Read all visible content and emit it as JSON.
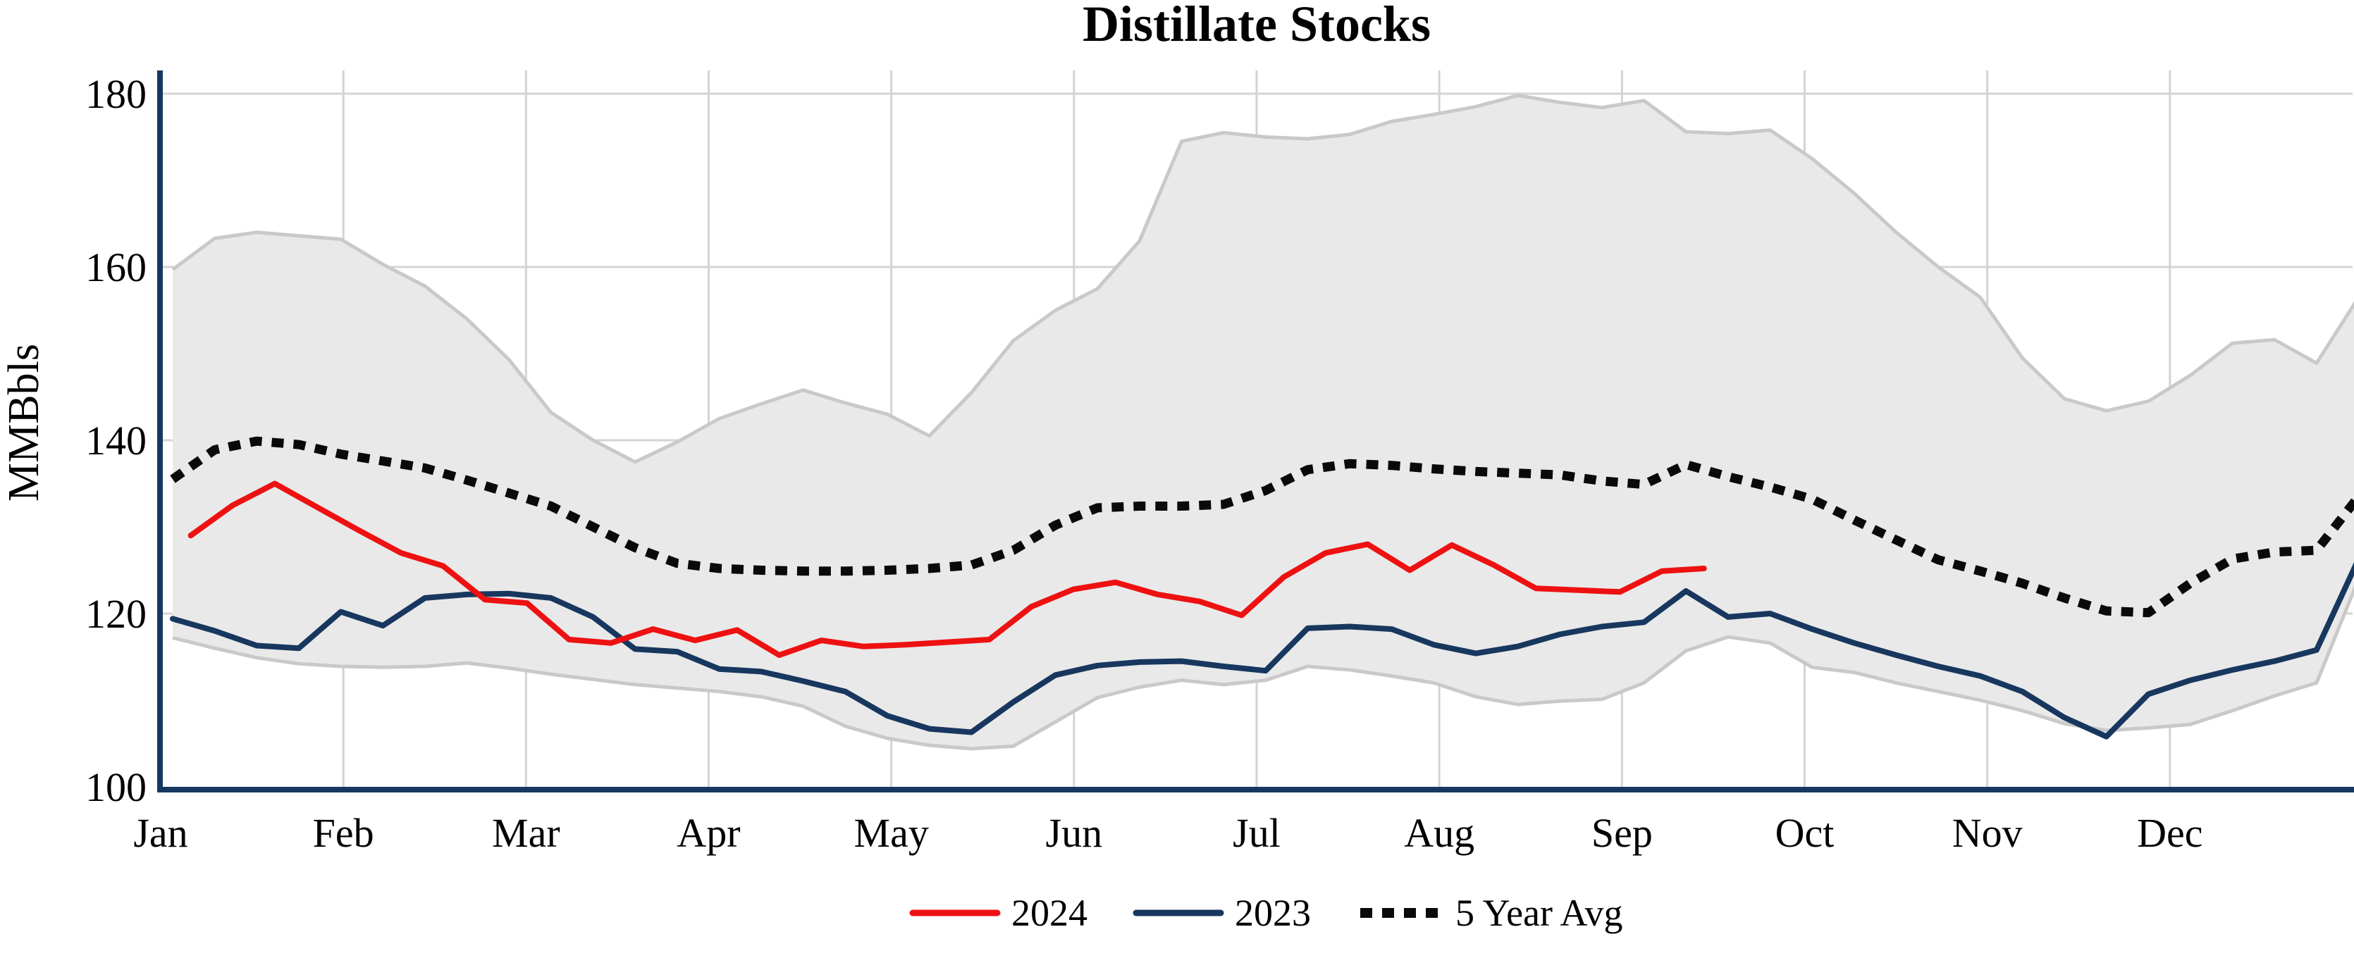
{
  "title": "Distillate Stocks",
  "y_axis": {
    "label": "MMBbls",
    "ticks": [
      100,
      120,
      140,
      160,
      180
    ],
    "gridline_ticks": [
      120,
      140,
      160,
      180
    ]
  },
  "x_axis": {
    "months": [
      "Jan",
      "Feb",
      "Mar",
      "Apr",
      "May",
      "Jun",
      "Jul",
      "Aug",
      "Sep",
      "Oct",
      "Nov",
      "Dec"
    ]
  },
  "legend": [
    {
      "label": "2024",
      "color": "#ee1111",
      "style": "solid"
    },
    {
      "label": "2023",
      "color": "#17375e",
      "style": "solid"
    },
    {
      "label": "5 Year Avg",
      "color": "#0a0a0a",
      "style": "dotted"
    }
  ],
  "colors": {
    "red_2024": "#ee1111",
    "navy_2023": "#17375e",
    "avg_dotted": "#0a0a0a",
    "band_fill": "#e9e9e9",
    "band_edge": "#c9c9c9",
    "gridline": "#d4d4d4",
    "spine": "#17375e",
    "background": "#ffffff"
  },
  "chart_data": {
    "type": "line",
    "title": "Distillate Stocks",
    "xlabel": "",
    "ylabel": "MMBbls",
    "x_unit": "day_of_year",
    "ylim": [
      99.5,
      182
    ],
    "grid": true,
    "legend_position": "bottom-center",
    "series": [
      {
        "name": "5 Year Range",
        "kind": "band",
        "start_day": 2,
        "step_days": 7,
        "upper": [
          159.7,
          163.3,
          164.0,
          163.6,
          163.2,
          160.3,
          157.8,
          154.0,
          149.3,
          143.2,
          140.0,
          137.5,
          139.8,
          142.5,
          144.2,
          145.8,
          144.3,
          143.0,
          140.5,
          145.5,
          151.5,
          155.0,
          157.5,
          163.0,
          174.5,
          175.5,
          175.0,
          174.8,
          175.3,
          176.8,
          177.6,
          178.5,
          179.8,
          179.0,
          178.4,
          179.2,
          175.6,
          175.4,
          175.8,
          172.5,
          168.5,
          164.0,
          160.0,
          156.5,
          149.5,
          144.8,
          143.4,
          144.5,
          147.5,
          151.2,
          151.6,
          148.9,
          156.5
        ],
        "lower": [
          117.2,
          116.0,
          114.9,
          114.2,
          113.9,
          113.8,
          113.9,
          114.3,
          113.7,
          113.0,
          112.4,
          111.8,
          111.4,
          111.0,
          110.4,
          109.3,
          107.0,
          105.6,
          104.8,
          104.4,
          104.7,
          107.5,
          110.3,
          111.5,
          112.3,
          111.8,
          112.3,
          113.9,
          113.5,
          112.8,
          112.0,
          110.4,
          109.5,
          109.9,
          110.1,
          112.0,
          115.7,
          117.3,
          116.6,
          113.8,
          113.2,
          112.0,
          111.0,
          110.0,
          108.8,
          107.3,
          106.5,
          106.8,
          107.2,
          108.8,
          110.5,
          112.0,
          124.0
        ]
      },
      {
        "name": "5 Year Avg",
        "kind": "line",
        "style": "dotted",
        "start_day": 2,
        "step_days": 7,
        "values": [
          135.5,
          138.9,
          139.9,
          139.5,
          138.4,
          137.6,
          136.8,
          135.4,
          133.9,
          132.4,
          130.0,
          127.6,
          125.8,
          125.2,
          125.0,
          124.9,
          124.9,
          125.0,
          125.2,
          125.6,
          127.3,
          130.2,
          132.2,
          132.4,
          132.4,
          132.6,
          134.2,
          136.6,
          137.3,
          137.1,
          136.7,
          136.4,
          136.2,
          136.0,
          135.3,
          134.9,
          137.2,
          135.8,
          134.6,
          133.2,
          130.8,
          128.5,
          126.2,
          124.9,
          123.5,
          121.8,
          120.3,
          120.1,
          123.5,
          126.3,
          127.1,
          127.3,
          133.5
        ]
      },
      {
        "name": "2023",
        "kind": "line",
        "style": "solid",
        "start_day": 2,
        "step_days": 7,
        "values": [
          119.4,
          118.0,
          116.3,
          116.0,
          120.2,
          118.6,
          121.8,
          122.2,
          122.3,
          121.8,
          119.6,
          115.9,
          115.6,
          113.6,
          113.3,
          112.2,
          111.0,
          108.2,
          106.7,
          106.3,
          109.8,
          112.9,
          114.0,
          114.4,
          114.5,
          113.9,
          113.4,
          118.3,
          118.5,
          118.2,
          116.4,
          115.4,
          116.2,
          117.6,
          118.5,
          119.0,
          122.6,
          119.6,
          120.0,
          118.2,
          116.6,
          115.2,
          113.9,
          112.8,
          111.0,
          108.0,
          105.8,
          110.7,
          112.3,
          113.5,
          114.5,
          115.8,
          126.3
        ]
      },
      {
        "name": "2024",
        "kind": "line",
        "style": "solid",
        "start_day": 5,
        "step_days": 7,
        "values": [
          129.0,
          132.5,
          135.0,
          132.3,
          129.6,
          127.0,
          125.5,
          121.6,
          121.2,
          117.0,
          116.6,
          118.2,
          116.9,
          118.1,
          115.2,
          116.9,
          116.2,
          116.4,
          116.7,
          117.0,
          120.8,
          122.8,
          123.6,
          122.2,
          121.4,
          119.8,
          124.2,
          127.0,
          128.0,
          125.0,
          127.9,
          125.6,
          122.9,
          122.7,
          122.5,
          124.9,
          125.2
        ]
      }
    ]
  }
}
